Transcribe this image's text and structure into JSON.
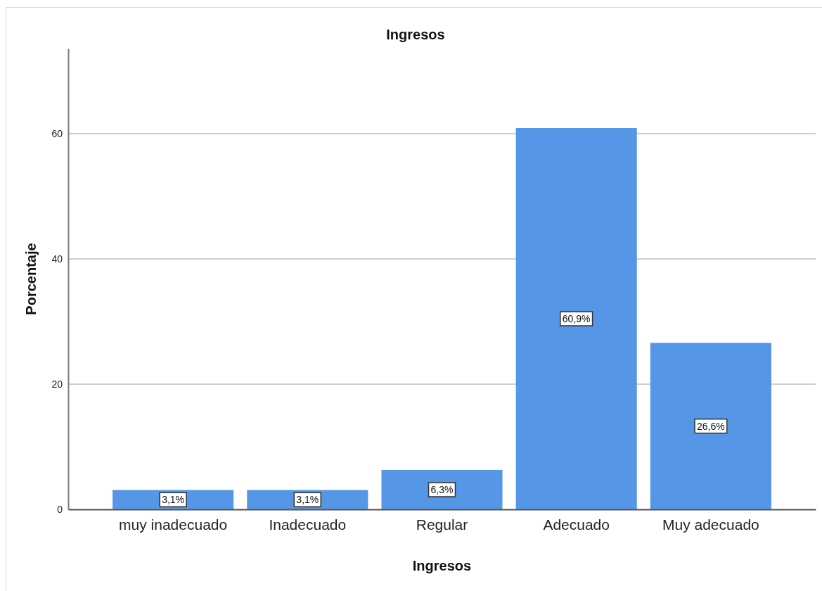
{
  "chart_data": {
    "type": "bar",
    "title": "Ingresos",
    "xlabel": "Ingresos",
    "ylabel": "Porcentaje",
    "categories": [
      "muy inadecuado",
      "Inadecuado",
      "Regular",
      "Adecuado",
      "Muy adecuado"
    ],
    "values": [
      3.1,
      3.1,
      6.3,
      60.9,
      26.6
    ],
    "value_labels": [
      "3,1%",
      "3,1%",
      "6,3%",
      "60,9%",
      "26,6%"
    ],
    "color": "#5596e6",
    "ylim": [
      0,
      73.6
    ],
    "yticks": [
      0,
      20,
      40,
      60
    ],
    "grid": "y"
  }
}
